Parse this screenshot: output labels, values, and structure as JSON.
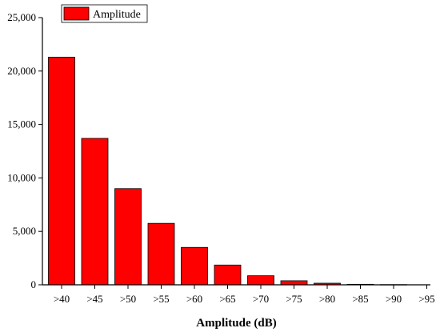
{
  "chart_data": {
    "type": "bar",
    "categories": [
      ">40",
      ">45",
      ">50",
      ">55",
      ">60",
      ">65",
      ">70",
      ">75",
      ">80",
      ">85",
      ">90",
      ">95"
    ],
    "series": [
      {
        "name": "Amplitude",
        "values": [
          21300,
          13700,
          9000,
          5750,
          3500,
          1850,
          850,
          380,
          150,
          50,
          20,
          0
        ],
        "color": "#ff0000"
      }
    ],
    "title": "",
    "xlabel": "Amplitude (dB)",
    "ylabel": "",
    "ylim": [
      0,
      25000
    ],
    "yticks": [
      0,
      5000,
      10000,
      15000,
      20000,
      25000
    ],
    "ytick_labels": [
      "0",
      "5,000",
      "10,000",
      "15,000",
      "20,000",
      "25,000"
    ],
    "grid": false,
    "legend_placement": "top-left"
  }
}
